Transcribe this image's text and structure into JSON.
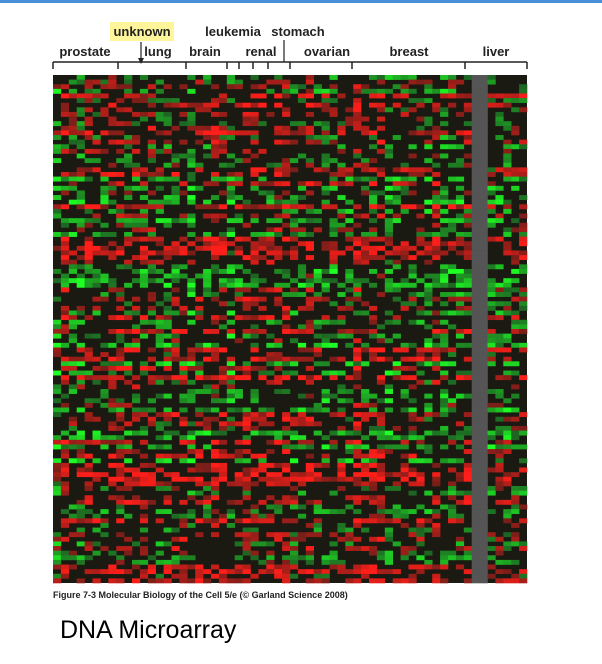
{
  "figure": {
    "top_labels": {
      "unknown": "unknown",
      "leukemia": "leukemia",
      "stomach": "stomach"
    },
    "tissue_labels": [
      "prostate",
      "lung",
      "brain",
      "renal",
      "ovarian",
      "breast",
      "liver"
    ],
    "caption": "Figure 7-3  Molecular Biology of the Cell 5/e (© Garland Science 2008)"
  },
  "slide_title": "DNA Microarray"
}
